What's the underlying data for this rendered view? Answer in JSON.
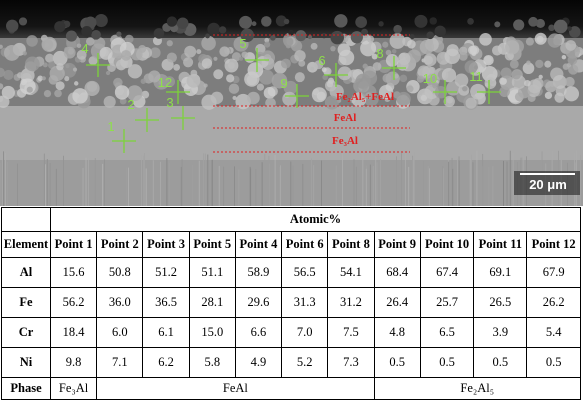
{
  "image": {
    "points": [
      "1",
      "2",
      "3",
      "4",
      "5",
      "6",
      "8",
      "9",
      "10",
      "11",
      "12"
    ],
    "phases": [
      "Fe₂Al₅+FeAl",
      "FeAl",
      "Fe₃Al"
    ],
    "scale_bar": "20 μm"
  },
  "table": {
    "title": "Atomic%",
    "header": [
      "Element",
      "Point 1",
      "Point 2",
      "Point 3",
      "Point 5",
      "Point 4",
      "Point 6",
      "Point 8",
      "Point 9",
      "Point 10",
      "Point 11",
      "Point 12"
    ],
    "rows": [
      [
        "Al",
        "15.6",
        "50.8",
        "51.2",
        "51.1",
        "58.9",
        "56.5",
        "54.1",
        "68.4",
        "67.4",
        "69.1",
        "67.9"
      ],
      [
        "Fe",
        "56.2",
        "36.0",
        "36.5",
        "28.1",
        "29.6",
        "31.3",
        "31.2",
        "26.4",
        "25.7",
        "26.5",
        "26.2"
      ],
      [
        "Cr",
        "18.4",
        "6.0",
        "6.1",
        "15.0",
        "6.6",
        "7.0",
        "7.5",
        "4.8",
        "6.5",
        "3.9",
        "5.4"
      ],
      [
        "Ni",
        "9.8",
        "7.1",
        "6.2",
        "5.8",
        "4.9",
        "5.2",
        "7.3",
        "0.5",
        "0.5",
        "0.5",
        "0.5"
      ]
    ],
    "phase_row": {
      "label": "Phase",
      "values": [
        "Fe₃Al",
        "FeAl",
        "Fe₂Al₅"
      ]
    }
  }
}
